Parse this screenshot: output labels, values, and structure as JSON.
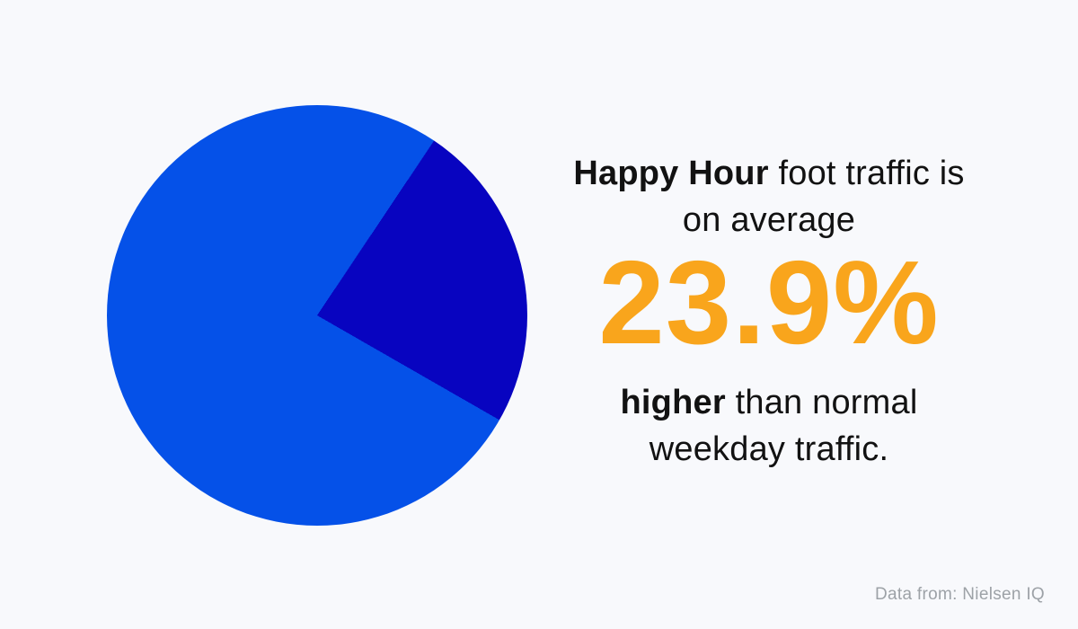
{
  "colors": {
    "background": "#F8F9FC",
    "text": "#121212",
    "muted": "#9DA2A7",
    "stat_accent": "#F9A51C"
  },
  "chart_data": {
    "type": "pie",
    "title": "",
    "slices": [
      {
        "label": "happy-hour-traffic-increase",
        "value": 23.9,
        "color": "#0804C0"
      },
      {
        "label": "remainder",
        "value": 76.1,
        "color": "#0551E8"
      }
    ],
    "rotation_deg": 33.8,
    "legend": "none",
    "data_labels": "none"
  },
  "headline": {
    "line1_bold": "Happy Hour",
    "line1_rest": " foot traffic is",
    "line2": "on average"
  },
  "stat": {
    "value": "23.9%"
  },
  "subline": {
    "line1_bold": "higher",
    "line1_rest": " than normal",
    "line2": "weekday traffic."
  },
  "attribution": "Data from: Nielsen IQ"
}
